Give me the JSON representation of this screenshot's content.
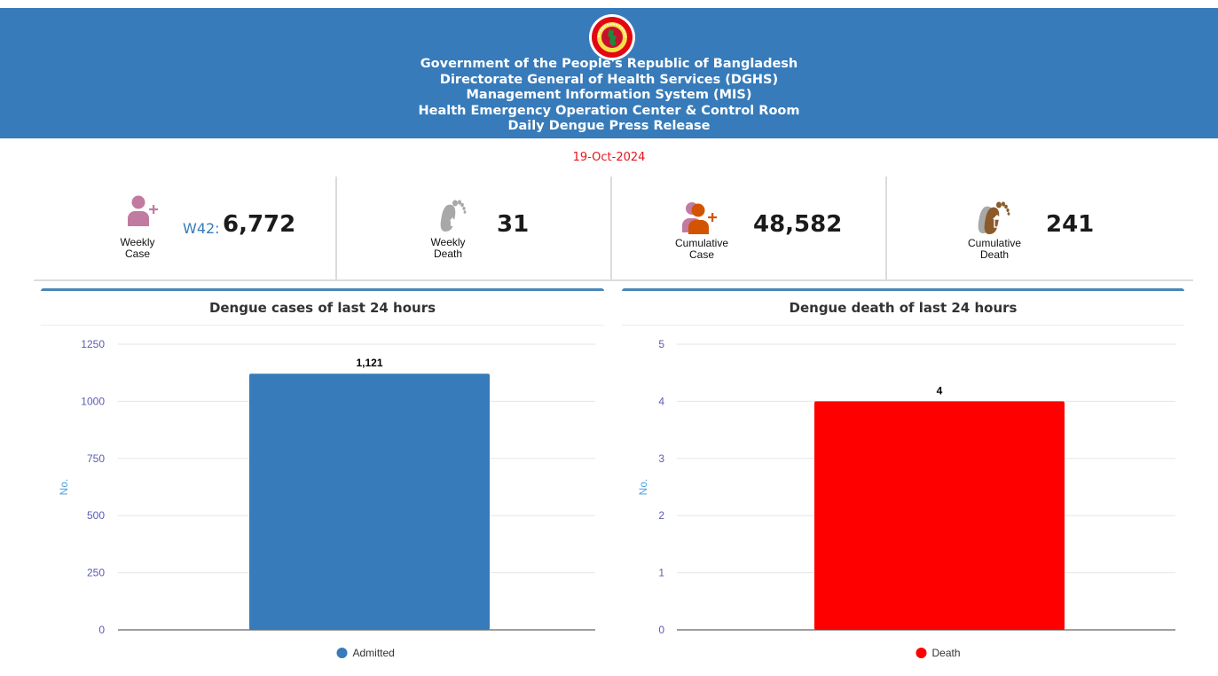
{
  "header": {
    "lines": [
      "Government of the People's Republic of Bangladesh",
      "Directorate General of Health Services (DGHS)",
      "Management Information System (MIS)",
      "Health Emergency Operation Center & Control Room",
      "Daily Dengue Press Release"
    ],
    "logo_icon": "bangladesh-government-seal-icon"
  },
  "date": "19-Oct-2024",
  "stats": [
    {
      "icon": "user-plus-icon",
      "label_1": "Weekly",
      "label_2": "Case",
      "prefix": "W42:",
      "value": "6,772"
    },
    {
      "icon": "footprint-death-icon",
      "label_1": "Weekly",
      "label_2": "Death",
      "prefix": "",
      "value": "31"
    },
    {
      "icon": "users-plus-icon",
      "label_1": "Cumulative",
      "label_2": "Case",
      "prefix": "",
      "value": "48,582"
    },
    {
      "icon": "footprint-cross-icon",
      "label_1": "Cumulative",
      "label_2": "Death",
      "prefix": "",
      "value": "241"
    }
  ],
  "colors": {
    "header_bg": "#377bba",
    "date": "#e8141b",
    "cases_bar": "#377bba",
    "death_bar": "#ff0000",
    "axis_tick": "#5b5bb5",
    "axis_label": "#4aa3df"
  },
  "chart_data": [
    {
      "type": "bar",
      "title": "Dengue cases of last 24 hours",
      "ylabel": "No.",
      "ylim": [
        0,
        1250
      ],
      "yticks": [
        0,
        250,
        500,
        750,
        1000,
        1250
      ],
      "grid": true,
      "legend_position": "bottom",
      "series": [
        {
          "name": "Admitted",
          "values": [
            1121
          ],
          "labels": [
            "1,121"
          ],
          "color": "#377bba"
        }
      ]
    },
    {
      "type": "bar",
      "title": "Dengue death of last 24 hours",
      "ylabel": "No.",
      "ylim": [
        0,
        5
      ],
      "yticks": [
        0,
        1,
        2,
        3,
        4,
        5
      ],
      "grid": true,
      "legend_position": "bottom",
      "series": [
        {
          "name": "Death",
          "values": [
            4
          ],
          "labels": [
            "4"
          ],
          "color": "#ff0000"
        }
      ]
    }
  ]
}
